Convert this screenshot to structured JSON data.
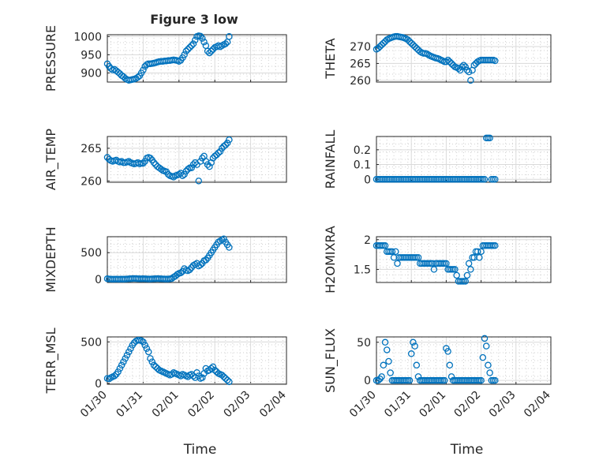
{
  "title": "Figure 3 low",
  "xticks": [
    "01/30",
    "01/31",
    "02/01",
    "02/02",
    "02/03",
    "02/04"
  ],
  "xlabel": "Time",
  "marker_color": "#0072BD",
  "chart_data": [
    {
      "type": "scatter",
      "ylabel": "PRESSURE",
      "ylim": [
        875,
        1005
      ],
      "yticks": [
        900,
        950,
        1000
      ],
      "yticklabels": [
        "900",
        "950",
        "1000"
      ],
      "xlim": [
        0,
        5
      ],
      "x": [
        0.0,
        0.05,
        0.1,
        0.15,
        0.2,
        0.25,
        0.3,
        0.35,
        0.4,
        0.45,
        0.5,
        0.55,
        0.6,
        0.65,
        0.7,
        0.75,
        0.8,
        0.85,
        0.9,
        0.95,
        1.0,
        1.05,
        1.1,
        1.15,
        1.2,
        1.25,
        1.3,
        1.35,
        1.4,
        1.45,
        1.5,
        1.55,
        1.6,
        1.65,
        1.7,
        1.75,
        1.8,
        1.85,
        1.9,
        1.95,
        2.0,
        2.05,
        2.1,
        2.15,
        2.2,
        2.25,
        2.3,
        2.35,
        2.4,
        2.45,
        2.5,
        2.55,
        2.6,
        2.65,
        2.7,
        2.75,
        2.8,
        2.85,
        2.9,
        2.95,
        3.0,
        3.05,
        3.1,
        3.15,
        3.2,
        3.25,
        3.3,
        3.35,
        3.4
      ],
      "y": [
        925,
        918,
        912,
        908,
        910,
        906,
        902,
        898,
        893,
        890,
        885,
        882,
        880,
        881,
        882,
        883,
        885,
        888,
        892,
        900,
        908,
        918,
        923,
        925,
        925,
        926,
        927,
        928,
        930,
        931,
        932,
        932,
        933,
        933,
        934,
        934,
        935,
        936,
        935,
        934,
        932,
        935,
        942,
        950,
        960,
        965,
        970,
        975,
        980,
        990,
        1000,
        1002,
        1001,
        995,
        985,
        975,
        960,
        955,
        960,
        965,
        970,
        972,
        975,
        972,
        975,
        978,
        980,
        985,
        1000
      ]
    },
    {
      "type": "scatter",
      "ylabel": "THETA",
      "ylim": [
        259.5,
        273.5
      ],
      "yticks": [
        260,
        265,
        270
      ],
      "yticklabels": [
        "260",
        "265",
        "270"
      ],
      "xlim": [
        0,
        5
      ],
      "x": [
        0.0,
        0.05,
        0.1,
        0.15,
        0.2,
        0.25,
        0.3,
        0.35,
        0.4,
        0.45,
        0.5,
        0.55,
        0.6,
        0.65,
        0.7,
        0.75,
        0.8,
        0.85,
        0.9,
        0.95,
        1.0,
        1.05,
        1.1,
        1.15,
        1.2,
        1.25,
        1.3,
        1.35,
        1.4,
        1.45,
        1.5,
        1.55,
        1.6,
        1.65,
        1.7,
        1.75,
        1.8,
        1.85,
        1.9,
        1.95,
        2.0,
        2.05,
        2.1,
        2.15,
        2.2,
        2.25,
        2.3,
        2.35,
        2.4,
        2.45,
        2.5,
        2.55,
        2.6,
        2.65,
        2.7,
        2.75,
        2.8,
        2.85,
        2.9,
        2.95,
        3.0,
        3.05,
        3.1,
        3.15,
        3.2,
        3.25,
        3.3,
        3.35,
        3.4
      ],
      "y": [
        269.2,
        269.5,
        270.0,
        270.5,
        271.0,
        271.5,
        272.0,
        272.3,
        272.5,
        272.7,
        272.9,
        273.0,
        273.0,
        272.9,
        272.8,
        272.7,
        272.5,
        272.3,
        272.0,
        271.5,
        271.0,
        270.5,
        270.0,
        269.5,
        269.0,
        268.5,
        268.2,
        268.0,
        268.0,
        267.8,
        267.5,
        267.2,
        267.0,
        266.8,
        266.6,
        266.5,
        266.3,
        266.0,
        265.8,
        265.5,
        265.5,
        266.0,
        265.5,
        265.0,
        264.5,
        264.0,
        263.8,
        263.5,
        263.0,
        264.0,
        264.5,
        264.0,
        263.0,
        262.5,
        260.0,
        263.0,
        264.5,
        265.0,
        265.5,
        265.8,
        266.0,
        266.0,
        266.0,
        266.0,
        266.0,
        266.0,
        266.0,
        266.0,
        265.8
      ]
    },
    {
      "type": "scatter",
      "ylabel": "AIR_TEMP",
      "ylim": [
        259.8,
        266.8
      ],
      "yticks": [
        260,
        265
      ],
      "yticklabels": [
        "260",
        "265"
      ],
      "xlim": [
        0,
        5
      ],
      "x": [
        0.0,
        0.05,
        0.1,
        0.15,
        0.2,
        0.25,
        0.3,
        0.35,
        0.4,
        0.45,
        0.5,
        0.55,
        0.6,
        0.65,
        0.7,
        0.75,
        0.8,
        0.85,
        0.9,
        0.95,
        1.0,
        1.05,
        1.1,
        1.15,
        1.2,
        1.25,
        1.3,
        1.35,
        1.4,
        1.45,
        1.5,
        1.55,
        1.6,
        1.65,
        1.7,
        1.75,
        1.8,
        1.85,
        1.9,
        1.95,
        2.0,
        2.05,
        2.1,
        2.15,
        2.2,
        2.25,
        2.3,
        2.35,
        2.4,
        2.45,
        2.5,
        2.55,
        2.6,
        2.65,
        2.7,
        2.75,
        2.8,
        2.85,
        2.9,
        2.95,
        3.0,
        3.05,
        3.1,
        3.15,
        3.2,
        3.25,
        3.3,
        3.35,
        3.4
      ],
      "y": [
        263.6,
        263.3,
        263.1,
        263.0,
        263.1,
        263.2,
        263.0,
        262.9,
        263.0,
        262.8,
        262.8,
        262.9,
        263.0,
        262.8,
        262.7,
        262.6,
        262.7,
        262.8,
        262.6,
        262.7,
        262.7,
        263.0,
        263.5,
        263.6,
        263.5,
        263.2,
        262.8,
        262.5,
        262.2,
        262.0,
        261.8,
        261.6,
        261.5,
        261.4,
        261.0,
        260.8,
        260.7,
        260.6,
        260.8,
        260.9,
        261.0,
        261.2,
        260.8,
        261.0,
        261.5,
        261.8,
        262.0,
        262.0,
        262.5,
        262.8,
        262.5,
        260.0,
        263.0,
        263.5,
        263.8,
        263.0,
        262.5,
        262.2,
        262.8,
        263.5,
        263.8,
        264.0,
        264.3,
        264.5,
        265.0,
        265.3,
        265.5,
        265.8,
        266.3
      ]
    },
    {
      "type": "scatter",
      "ylabel": "RAINFALL",
      "ylim": [
        -0.02,
        0.29
      ],
      "yticks": [
        0,
        0.1,
        0.2
      ],
      "yticklabels": [
        "0",
        "0.1",
        "0.2"
      ],
      "xlim": [
        0,
        5
      ],
      "x": [
        0.0,
        0.05,
        0.1,
        0.15,
        0.2,
        0.25,
        0.3,
        0.35,
        0.4,
        0.45,
        0.5,
        0.55,
        0.6,
        0.65,
        0.7,
        0.75,
        0.8,
        0.85,
        0.9,
        0.95,
        1.0,
        1.05,
        1.1,
        1.15,
        1.2,
        1.25,
        1.3,
        1.35,
        1.4,
        1.45,
        1.5,
        1.55,
        1.6,
        1.65,
        1.7,
        1.75,
        1.8,
        1.85,
        1.9,
        1.95,
        2.0,
        2.05,
        2.1,
        2.15,
        2.2,
        2.25,
        2.3,
        2.35,
        2.4,
        2.45,
        2.5,
        2.55,
        2.6,
        2.65,
        2.7,
        2.75,
        2.8,
        2.85,
        2.9,
        2.95,
        3.0,
        3.05,
        3.1,
        3.15,
        3.2,
        3.25,
        3.3,
        3.35,
        3.4
      ],
      "y": [
        0,
        0,
        0,
        0,
        0,
        0,
        0,
        0,
        0,
        0,
        0,
        0,
        0,
        0,
        0,
        0,
        0,
        0,
        0,
        0,
        0,
        0,
        0,
        0,
        0,
        0,
        0,
        0,
        0,
        0,
        0,
        0,
        0,
        0,
        0,
        0,
        0,
        0,
        0,
        0,
        0,
        0,
        0,
        0,
        0,
        0,
        0,
        0,
        0,
        0,
        0,
        0,
        0,
        0,
        0,
        0,
        0,
        0,
        0,
        0,
        0,
        0,
        0,
        0.28,
        0.28,
        0.28,
        0,
        0,
        0
      ]
    },
    {
      "type": "scatter",
      "ylabel": "MIXDEPTH",
      "ylim": [
        -60,
        800
      ],
      "yticks": [
        0,
        500
      ],
      "yticklabels": [
        "0",
        "500"
      ],
      "xlim": [
        0,
        5
      ],
      "x": [
        0.0,
        0.05,
        0.1,
        0.15,
        0.2,
        0.25,
        0.3,
        0.35,
        0.4,
        0.45,
        0.5,
        0.55,
        0.6,
        0.65,
        0.7,
        0.75,
        0.8,
        0.85,
        0.9,
        0.95,
        1.0,
        1.05,
        1.1,
        1.15,
        1.2,
        1.25,
        1.3,
        1.35,
        1.4,
        1.45,
        1.5,
        1.55,
        1.6,
        1.65,
        1.7,
        1.75,
        1.8,
        1.85,
        1.9,
        1.95,
        2.0,
        2.05,
        2.1,
        2.15,
        2.2,
        2.25,
        2.3,
        2.35,
        2.4,
        2.45,
        2.5,
        2.55,
        2.6,
        2.65,
        2.7,
        2.75,
        2.8,
        2.85,
        2.9,
        2.95,
        3.0,
        3.05,
        3.1,
        3.15,
        3.2,
        3.25,
        3.3,
        3.35,
        3.4
      ],
      "y": [
        10,
        5,
        3,
        2,
        2,
        3,
        2,
        2,
        3,
        2,
        3,
        5,
        8,
        10,
        12,
        15,
        12,
        10,
        8,
        8,
        10,
        8,
        6,
        5,
        5,
        6,
        8,
        10,
        12,
        10,
        8,
        6,
        5,
        4,
        5,
        8,
        15,
        40,
        60,
        90,
        110,
        120,
        150,
        200,
        170,
        160,
        180,
        220,
        260,
        280,
        300,
        250,
        270,
        300,
        350,
        360,
        400,
        450,
        500,
        550,
        600,
        650,
        700,
        720,
        740,
        760,
        700,
        650,
        600
      ]
    },
    {
      "type": "scatter",
      "ylabel": "H2OMIXRA",
      "ylim": [
        1.28,
        2.05
      ],
      "yticks": [
        1.5,
        2
      ],
      "yticklabels": [
        "1.5",
        "2"
      ],
      "xlim": [
        0,
        5
      ],
      "x": [
        0.0,
        0.05,
        0.1,
        0.15,
        0.2,
        0.25,
        0.3,
        0.35,
        0.4,
        0.45,
        0.5,
        0.55,
        0.6,
        0.65,
        0.7,
        0.75,
        0.8,
        0.85,
        0.9,
        0.95,
        1.0,
        1.05,
        1.1,
        1.15,
        1.2,
        1.25,
        1.3,
        1.35,
        1.4,
        1.45,
        1.5,
        1.55,
        1.6,
        1.65,
        1.7,
        1.75,
        1.8,
        1.85,
        1.9,
        1.95,
        2.0,
        2.05,
        2.1,
        2.15,
        2.2,
        2.25,
        2.3,
        2.35,
        2.4,
        2.45,
        2.5,
        2.55,
        2.6,
        2.65,
        2.7,
        2.75,
        2.8,
        2.85,
        2.9,
        2.95,
        3.0,
        3.05,
        3.1,
        3.15,
        3.2,
        3.25,
        3.3,
        3.35,
        3.4
      ],
      "y": [
        1.9,
        1.9,
        1.9,
        1.9,
        1.9,
        1.9,
        1.8,
        1.8,
        1.8,
        1.8,
        1.7,
        1.8,
        1.6,
        1.7,
        1.7,
        1.7,
        1.7,
        1.7,
        1.7,
        1.7,
        1.7,
        1.7,
        1.7,
        1.7,
        1.7,
        1.6,
        1.6,
        1.6,
        1.6,
        1.6,
        1.6,
        1.6,
        1.6,
        1.5,
        1.6,
        1.6,
        1.6,
        1.6,
        1.6,
        1.6,
        1.6,
        1.5,
        1.5,
        1.5,
        1.5,
        1.5,
        1.4,
        1.3,
        1.3,
        1.3,
        1.3,
        1.3,
        1.4,
        1.6,
        1.5,
        1.7,
        1.7,
        1.8,
        1.8,
        1.7,
        1.8,
        1.9,
        1.9,
        1.9,
        1.9,
        1.9,
        1.9,
        1.9,
        1.9
      ]
    },
    {
      "type": "scatter",
      "ylabel": "TERR_MSL",
      "ylim": [
        -10,
        560
      ],
      "yticks": [
        0,
        500
      ],
      "yticklabels": [
        "0",
        "500"
      ],
      "xlim": [
        0,
        5
      ],
      "x": [
        0.0,
        0.05,
        0.1,
        0.15,
        0.2,
        0.25,
        0.3,
        0.35,
        0.4,
        0.45,
        0.5,
        0.55,
        0.6,
        0.65,
        0.7,
        0.75,
        0.8,
        0.85,
        0.9,
        0.95,
        1.0,
        1.05,
        1.1,
        1.15,
        1.2,
        1.25,
        1.3,
        1.35,
        1.4,
        1.45,
        1.5,
        1.55,
        1.6,
        1.65,
        1.7,
        1.75,
        1.8,
        1.85,
        1.9,
        1.95,
        2.0,
        2.05,
        2.1,
        2.15,
        2.2,
        2.25,
        2.3,
        2.35,
        2.4,
        2.45,
        2.5,
        2.55,
        2.6,
        2.65,
        2.7,
        2.75,
        2.8,
        2.85,
        2.9,
        2.95,
        3.0,
        3.05,
        3.1,
        3.15,
        3.2,
        3.25,
        3.3,
        3.35,
        3.4
      ],
      "y": [
        60,
        55,
        70,
        80,
        90,
        110,
        140,
        180,
        220,
        260,
        300,
        340,
        380,
        420,
        460,
        490,
        510,
        520,
        520,
        515,
        500,
        460,
        420,
        380,
        300,
        260,
        220,
        200,
        180,
        160,
        150,
        140,
        130,
        120,
        110,
        100,
        110,
        130,
        120,
        110,
        100,
        90,
        110,
        100,
        90,
        80,
        100,
        110,
        90,
        70,
        130,
        90,
        60,
        70,
        120,
        180,
        150,
        160,
        180,
        200,
        160,
        140,
        120,
        110,
        100,
        80,
        60,
        40,
        20
      ]
    },
    {
      "type": "scatter",
      "ylabel": "SUN_FLUX",
      "ylim": [
        -5,
        57
      ],
      "yticks": [
        0,
        50
      ],
      "yticklabels": [
        "0",
        "50"
      ],
      "xlim": [
        0,
        5
      ],
      "x": [
        0.0,
        0.05,
        0.1,
        0.15,
        0.2,
        0.25,
        0.3,
        0.35,
        0.4,
        0.45,
        0.5,
        0.55,
        0.6,
        0.65,
        0.7,
        0.75,
        0.8,
        0.85,
        0.9,
        0.95,
        1.0,
        1.05,
        1.1,
        1.15,
        1.2,
        1.25,
        1.3,
        1.35,
        1.4,
        1.45,
        1.5,
        1.55,
        1.6,
        1.65,
        1.7,
        1.75,
        1.8,
        1.85,
        1.9,
        1.95,
        2.0,
        2.05,
        2.1,
        2.15,
        2.2,
        2.25,
        2.3,
        2.35,
        2.4,
        2.45,
        2.5,
        2.55,
        2.6,
        2.65,
        2.7,
        2.75,
        2.8,
        2.85,
        2.9,
        2.95,
        3.0,
        3.05,
        3.1,
        3.15,
        3.2,
        3.25,
        3.3,
        3.35,
        3.4
      ],
      "y": [
        0,
        0,
        2,
        5,
        20,
        50,
        40,
        25,
        10,
        0,
        0,
        0,
        0,
        0,
        0,
        0,
        0,
        0,
        0,
        0,
        35,
        50,
        45,
        20,
        5,
        0,
        0,
        0,
        0,
        0,
        0,
        0,
        0,
        0,
        0,
        0,
        0,
        0,
        0,
        0,
        42,
        38,
        20,
        5,
        0,
        0,
        0,
        0,
        0,
        0,
        0,
        0,
        0,
        0,
        0,
        0,
        0,
        0,
        0,
        0,
        0,
        30,
        55,
        45,
        20,
        10,
        0,
        0,
        0
      ]
    }
  ]
}
